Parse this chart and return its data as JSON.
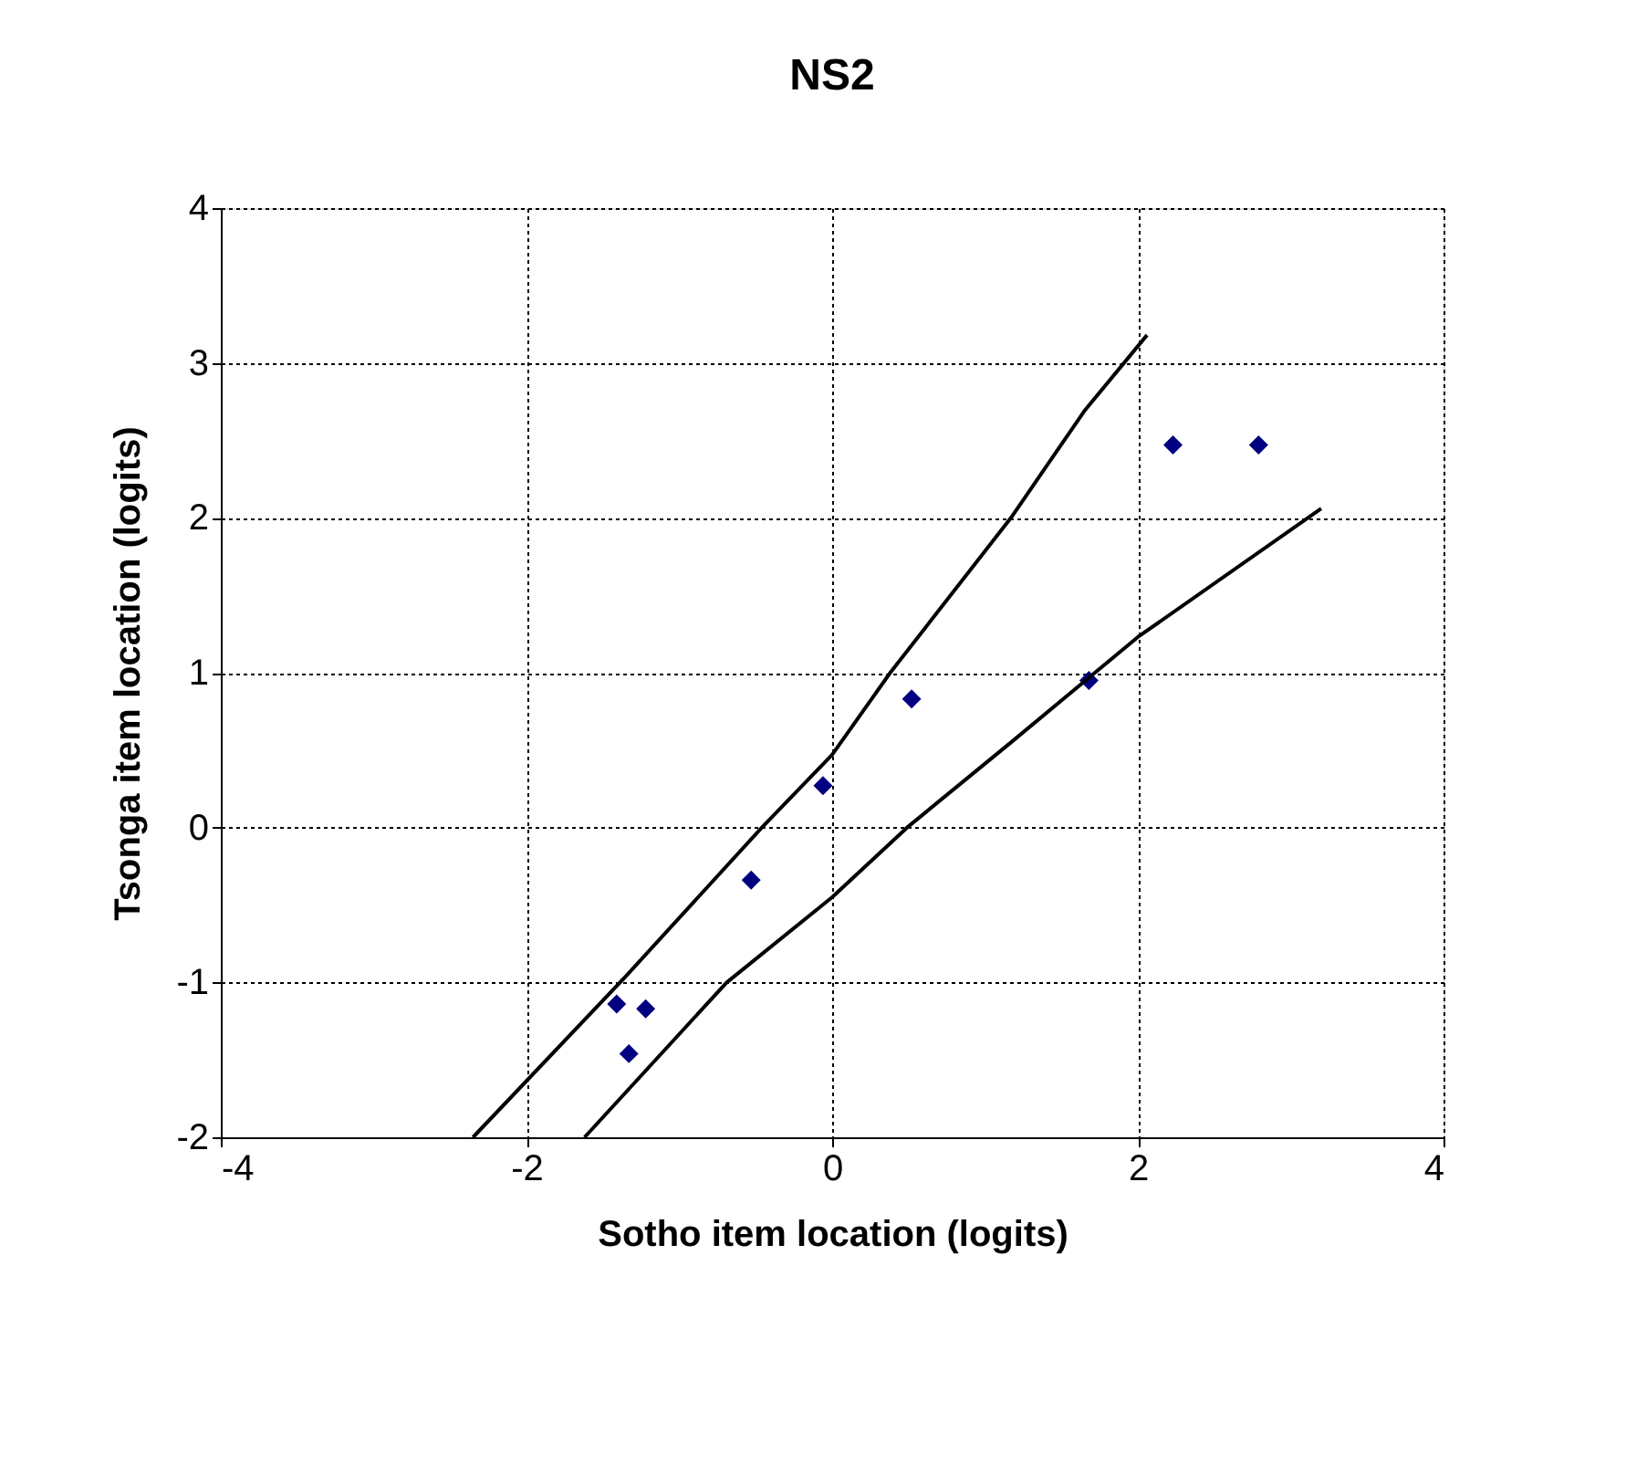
{
  "chart_data": {
    "type": "scatter",
    "title": "NS2",
    "xlabel": "Sotho item location (logits)",
    "ylabel": "Tsonga item location (logits)",
    "xlim": [
      -4,
      4
    ],
    "ylim": [
      -2,
      4
    ],
    "xticks": [
      -4,
      -2,
      0,
      2,
      4
    ],
    "yticks": [
      -2,
      -1,
      0,
      1,
      2,
      3,
      4
    ],
    "grid": true,
    "series": [
      {
        "color": "#000080",
        "marker": "diamond",
        "x": [
          -1.41,
          -1.22,
          -1.33,
          -0.53,
          -0.06,
          0.52,
          1.68,
          2.23,
          2.79
        ],
        "values": [
          -1.14,
          -1.17,
          -1.46,
          -0.34,
          0.27,
          0.83,
          0.95,
          2.47,
          2.47
        ]
      },
      {
        "type": "line",
        "color": "#000000",
        "x": [
          -2.35,
          -1.35,
          -0.46,
          0,
          0.38,
          1.17,
          1.65,
          2.06
        ],
        "values": [
          -2,
          -0.96,
          0,
          0.47,
          1.0,
          2.0,
          2.69,
          3.18
        ]
      },
      {
        "type": "line",
        "color": "#000000",
        "x": [
          -1.62,
          -0.69,
          0,
          0.49,
          1.17,
          2.0,
          3.2
        ],
        "values": [
          -2,
          -1,
          -0.45,
          0,
          0.55,
          1.23,
          2.06
        ]
      }
    ]
  }
}
